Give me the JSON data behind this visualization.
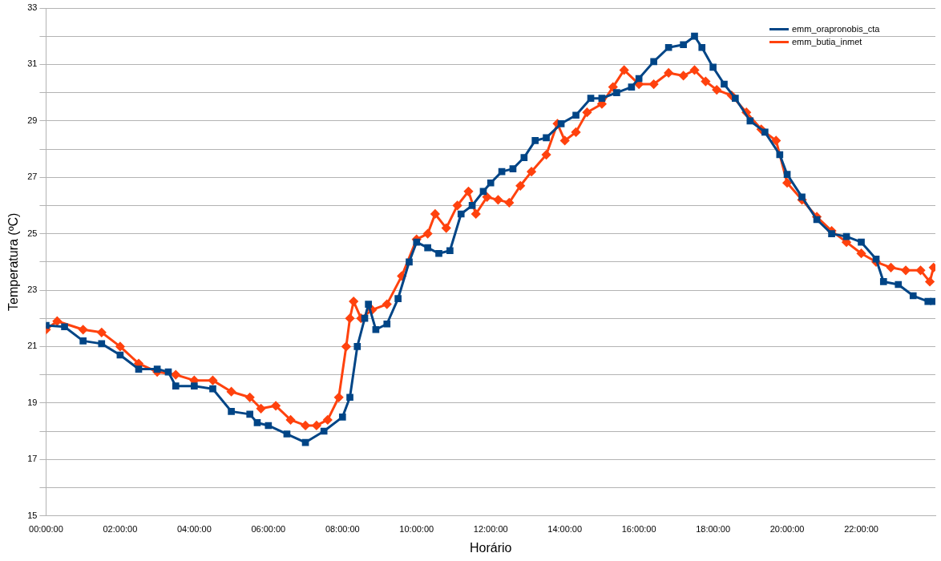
{
  "chart_data": {
    "type": "line",
    "xlabel": "Horário",
    "ylabel": "Temperatura (ºC)",
    "xlim": [
      0,
      24
    ],
    "ylim": [
      15,
      33
    ],
    "xticks": [
      {
        "value": 0,
        "label": "00:00:00"
      },
      {
        "value": 2,
        "label": "02:00:00"
      },
      {
        "value": 4,
        "label": "04:00:00"
      },
      {
        "value": 6,
        "label": "06:00:00"
      },
      {
        "value": 8,
        "label": "08:00:00"
      },
      {
        "value": 10,
        "label": "10:00:00"
      },
      {
        "value": 12,
        "label": "12:00:00"
      },
      {
        "value": 14,
        "label": "14:00:00"
      },
      {
        "value": 16,
        "label": "16:00:00"
      },
      {
        "value": 18,
        "label": "18:00:00"
      },
      {
        "value": 20,
        "label": "20:00:00"
      },
      {
        "value": 22,
        "label": "22:00:00"
      }
    ],
    "yticks": [
      15,
      {
        "value": 16,
        "label": null
      },
      17,
      {
        "value": 18,
        "label": null
      },
      19,
      {
        "value": 20,
        "label": null
      },
      21,
      {
        "value": 22,
        "label": null
      },
      23,
      {
        "value": 24,
        "label": null
      },
      25,
      {
        "value": 26,
        "label": null
      },
      27,
      {
        "value": 28,
        "label": null
      },
      29,
      {
        "value": 30,
        "label": null
      },
      31,
      {
        "value": 32,
        "label": null
      },
      33
    ],
    "grid": "y",
    "legend": "top right",
    "line_style": "solid",
    "series": [
      {
        "name": "emm_orapronobis_cta",
        "color": "#004586",
        "marker": "square",
        "x": [
          0,
          0.5,
          1,
          1.5,
          2,
          2.5,
          3,
          3.3,
          3.5,
          4,
          4.5,
          5,
          5.5,
          5.7,
          6,
          6.5,
          7,
          7.5,
          8,
          8.2,
          8.4,
          8.6,
          8.7,
          8.9,
          9.2,
          9.5,
          9.8,
          10,
          10.3,
          10.6,
          10.9,
          11.2,
          11.5,
          11.8,
          12,
          12.3,
          12.6,
          12.9,
          13.2,
          13.5,
          13.9,
          14.3,
          14.7,
          15,
          15.4,
          15.8,
          16,
          16.4,
          16.8,
          17.2,
          17.5,
          17.7,
          18,
          18.3,
          18.6,
          19,
          19.4,
          19.8,
          20,
          20.4,
          20.8,
          21.2,
          21.6,
          22,
          22.4,
          22.6,
          23,
          23.4,
          23.8,
          23.95
        ],
        "values": [
          21.75,
          21.7,
          21.2,
          21.1,
          20.7,
          20.2,
          20.2,
          20.1,
          19.6,
          19.6,
          19.5,
          18.7,
          18.6,
          18.3,
          18.2,
          17.9,
          17.6,
          18.0,
          18.5,
          19.2,
          21.0,
          22.0,
          22.5,
          21.6,
          21.8,
          22.7,
          24.0,
          24.7,
          24.5,
          24.3,
          24.4,
          25.7,
          26.0,
          26.5,
          26.8,
          27.2,
          27.3,
          27.7,
          28.3,
          28.4,
          28.9,
          29.2,
          29.8,
          29.8,
          30.0,
          30.2,
          30.5,
          31.1,
          31.6,
          31.7,
          32.0,
          31.6,
          30.9,
          30.3,
          29.8,
          29.0,
          28.6,
          27.8,
          27.1,
          26.3,
          25.5,
          25.0,
          24.9,
          24.7,
          24.1,
          23.3,
          23.2,
          22.8,
          22.6,
          22.6
        ]
      },
      {
        "name": "emm_butia_inmet",
        "color": "#ff420e",
        "marker": "diamond",
        "x": [
          0,
          0.3,
          1,
          1.5,
          2,
          2.5,
          3,
          3.5,
          4,
          4.5,
          5,
          5.5,
          5.8,
          6.2,
          6.6,
          7,
          7.3,
          7.6,
          7.9,
          8.1,
          8.2,
          8.3,
          8.5,
          8.8,
          9.2,
          9.6,
          10,
          10.3,
          10.5,
          10.8,
          11.1,
          11.4,
          11.6,
          11.9,
          12.2,
          12.5,
          12.8,
          13.1,
          13.5,
          13.8,
          14,
          14.3,
          14.6,
          15,
          15.3,
          15.6,
          16,
          16.4,
          16.8,
          17.2,
          17.5,
          17.8,
          18.1,
          18.5,
          18.9,
          19.3,
          19.7,
          20,
          20.4,
          20.8,
          21.2,
          21.6,
          22,
          22.4,
          22.8,
          23.2,
          23.6,
          23.85,
          23.95
        ],
        "values": [
          21.6,
          21.9,
          21.6,
          21.5,
          21.0,
          20.4,
          20.1,
          20.0,
          19.8,
          19.8,
          19.4,
          19.2,
          18.8,
          18.9,
          18.4,
          18.2,
          18.2,
          18.4,
          19.2,
          21.0,
          22.0,
          22.6,
          22.0,
          22.3,
          22.5,
          23.5,
          24.8,
          25.0,
          25.7,
          25.2,
          26.0,
          26.5,
          25.7,
          26.3,
          26.2,
          26.1,
          26.7,
          27.2,
          27.8,
          28.9,
          28.3,
          28.6,
          29.3,
          29.6,
          30.2,
          30.8,
          30.3,
          30.3,
          30.7,
          30.6,
          30.8,
          30.4,
          30.1,
          29.9,
          29.3,
          28.7,
          28.3,
          26.8,
          26.2,
          25.6,
          25.1,
          24.7,
          24.3,
          24.0,
          23.8,
          23.7,
          23.7,
          23.3,
          23.8
        ]
      }
    ]
  }
}
